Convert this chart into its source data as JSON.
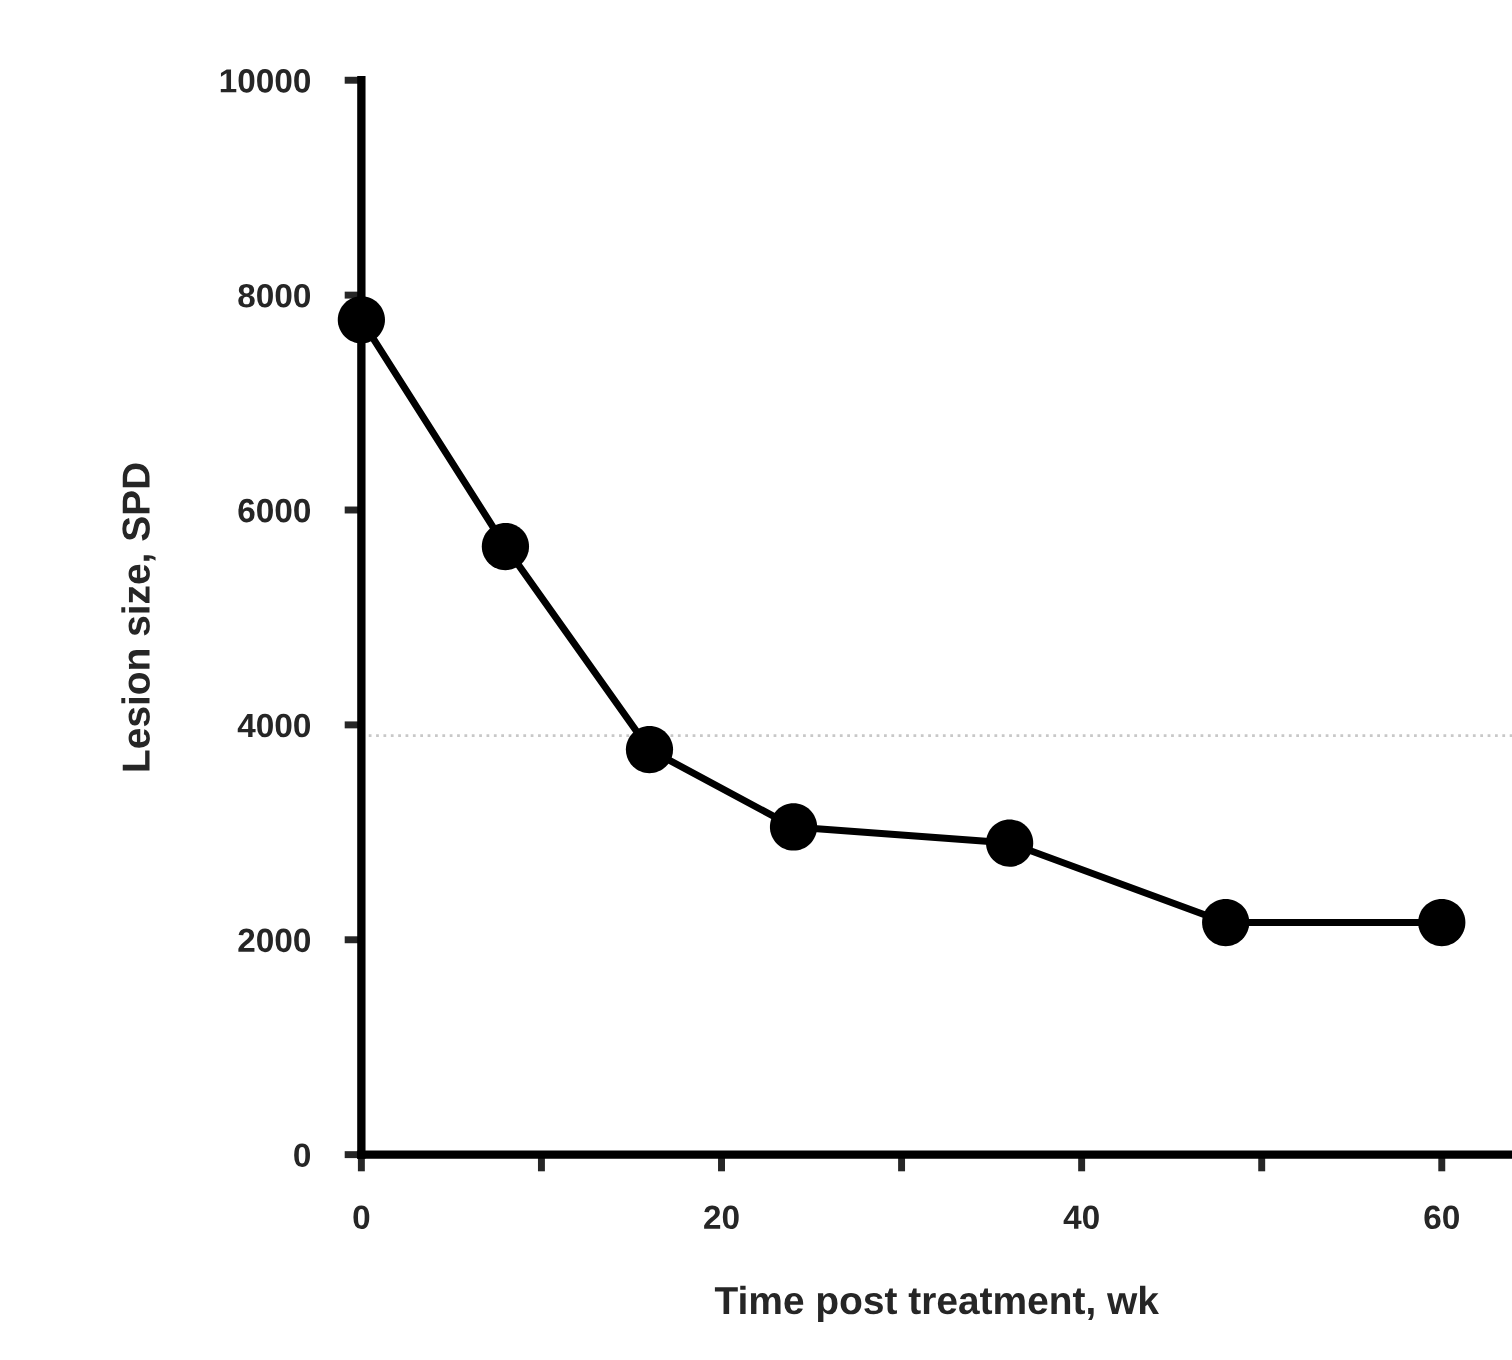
{
  "chart_data": {
    "type": "line",
    "xlabel": "Time post treatment, wk",
    "ylabel": "Lesion size, SPD",
    "x": [
      0,
      8,
      16,
      24,
      36,
      48,
      60
    ],
    "series": [
      {
        "color": "#000000",
        "values": [
          7770,
          5660,
          3770,
          3050,
          2900,
          2160,
          2160
        ]
      }
    ],
    "xlim": [
      0,
      63.9
    ],
    "xticks": [
      0,
      {
        "value": 10,
        "label": null
      },
      20,
      {
        "value": 30,
        "label": null
      },
      40,
      {
        "value": 50,
        "label": null
      },
      60
    ],
    "ylim": [
      0,
      10000
    ],
    "yticks": [
      0,
      2000,
      4000,
      6000,
      8000,
      10000
    ],
    "ref_lines": [
      {
        "axis": "y",
        "value": 3900,
        "color": "#c8c8c8",
        "line_style": "dotted"
      }
    ],
    "marker": "circle",
    "line_style": "solid",
    "grid": false
  }
}
